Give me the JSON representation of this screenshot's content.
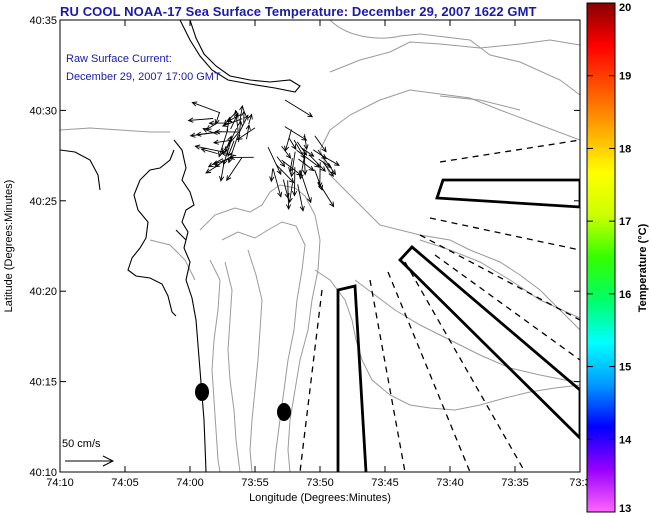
{
  "title": "RU COOL  NOAA-17  Sea Surface Temperature:  December 29, 2007 1622 GMT",
  "annotation": {
    "line1": "Raw Surface Current:",
    "line2": "December 29, 2007 17:00 GMT"
  },
  "axes": {
    "xlabel": "Longitude (Degrees:Minutes)",
    "ylabel": "Latitude (Degrees:Minutes)",
    "xticks": [
      "74:10",
      "74:05",
      "74:00",
      "73:55",
      "73:50",
      "73:45",
      "73:40",
      "73:35",
      "73:3"
    ],
    "yticks": [
      "40:35",
      "40:30",
      "40:25",
      "40:20",
      "40:15",
      "40:10"
    ]
  },
  "scale": {
    "label": "50 cm/s"
  },
  "colorbar": {
    "label": "Temperature (°C)",
    "ticks": [
      "20",
      "19",
      "18",
      "17",
      "16",
      "15",
      "14",
      "13"
    ],
    "min": 13,
    "max": 20,
    "colors": [
      "#ff66ff",
      "#9900ff",
      "#0000ff",
      "#0099ff",
      "#00ffff",
      "#00ff66",
      "#33ff00",
      "#ccff00",
      "#ffff00",
      "#ffaa00",
      "#ff5500",
      "#ff0000",
      "#880000"
    ]
  },
  "colors": {
    "title": "#1a1aa8",
    "annotation": "#1a1aa8",
    "frame": "#000000",
    "contour": "#999999",
    "coast": "#000000"
  }
}
